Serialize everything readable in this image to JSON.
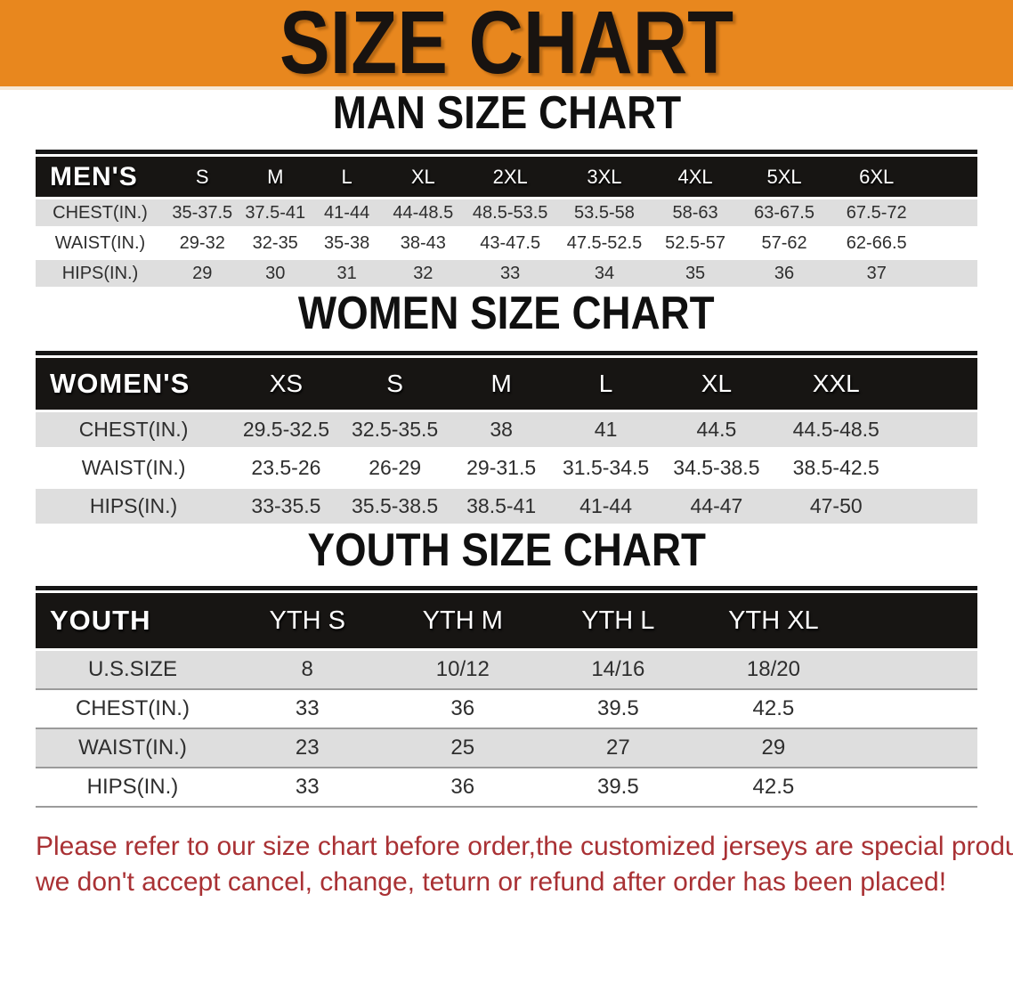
{
  "banner": {
    "title": "SIZE CHART"
  },
  "colors": {
    "banner_bg": "#E8871E",
    "header_bar_bg": "#171513",
    "row_stripe_bg": "#DEDEDE",
    "footer_text": "#A93134"
  },
  "men": {
    "heading": "MAN SIZE CHART",
    "label": "MEN'S",
    "sizes": [
      "S",
      "M",
      "L",
      "XL",
      "2XL",
      "3XL",
      "4XL",
      "5XL",
      "6XL"
    ],
    "rows": [
      {
        "label": "CHEST(IN.)",
        "values": [
          "35-37.5",
          "37.5-41",
          "41-44",
          "44-48.5",
          "48.5-53.5",
          "53.5-58",
          "58-63",
          "63-67.5",
          "67.5-72"
        ]
      },
      {
        "label": "WAIST(IN.)",
        "values": [
          "29-32",
          "32-35",
          "35-38",
          "38-43",
          "43-47.5",
          "47.5-52.5",
          "52.5-57",
          "57-62",
          "62-66.5"
        ]
      },
      {
        "label": "HIPS(IN.)",
        "values": [
          "29",
          "30",
          "31",
          "32",
          "33",
          "34",
          "35",
          "36",
          "37"
        ]
      }
    ]
  },
  "women": {
    "heading": "WOMEN SIZE CHART",
    "label": "WOMEN'S",
    "sizes": [
      "XS",
      "S",
      "M",
      "L",
      "XL",
      "XXL"
    ],
    "rows": [
      {
        "label": "CHEST(IN.)",
        "values": [
          "29.5-32.5",
          "32.5-35.5",
          "38",
          "41",
          "44.5",
          "44.5-48.5"
        ]
      },
      {
        "label": "WAIST(IN.)",
        "values": [
          "23.5-26",
          "26-29",
          "29-31.5",
          "31.5-34.5",
          "34.5-38.5",
          "38.5-42.5"
        ]
      },
      {
        "label": "HIPS(IN.)",
        "values": [
          "33-35.5",
          "35.5-38.5",
          "38.5-41",
          "41-44",
          "44-47",
          "47-50"
        ]
      }
    ]
  },
  "youth": {
    "heading": "YOUTH SIZE CHART",
    "label": "YOUTH",
    "sizes": [
      "YTH S",
      "YTH M",
      "YTH L",
      "YTH XL"
    ],
    "rows": [
      {
        "label": "U.S.SIZE",
        "values": [
          "8",
          "10/12",
          "14/16",
          "18/20"
        ]
      },
      {
        "label": "CHEST(IN.)",
        "values": [
          "33",
          "36",
          "39.5",
          "42.5"
        ]
      },
      {
        "label": "WAIST(IN.)",
        "values": [
          "23",
          "25",
          "27",
          "29"
        ]
      },
      {
        "label": "HIPS(IN.)",
        "values": [
          "33",
          "36",
          "39.5",
          "42.5"
        ]
      }
    ]
  },
  "footer": {
    "line1": "Please refer to our size chart before order,the customized jerseys are special products,",
    "line2": "we don't accept cancel, change, teturn or refund after order has been placed!"
  }
}
